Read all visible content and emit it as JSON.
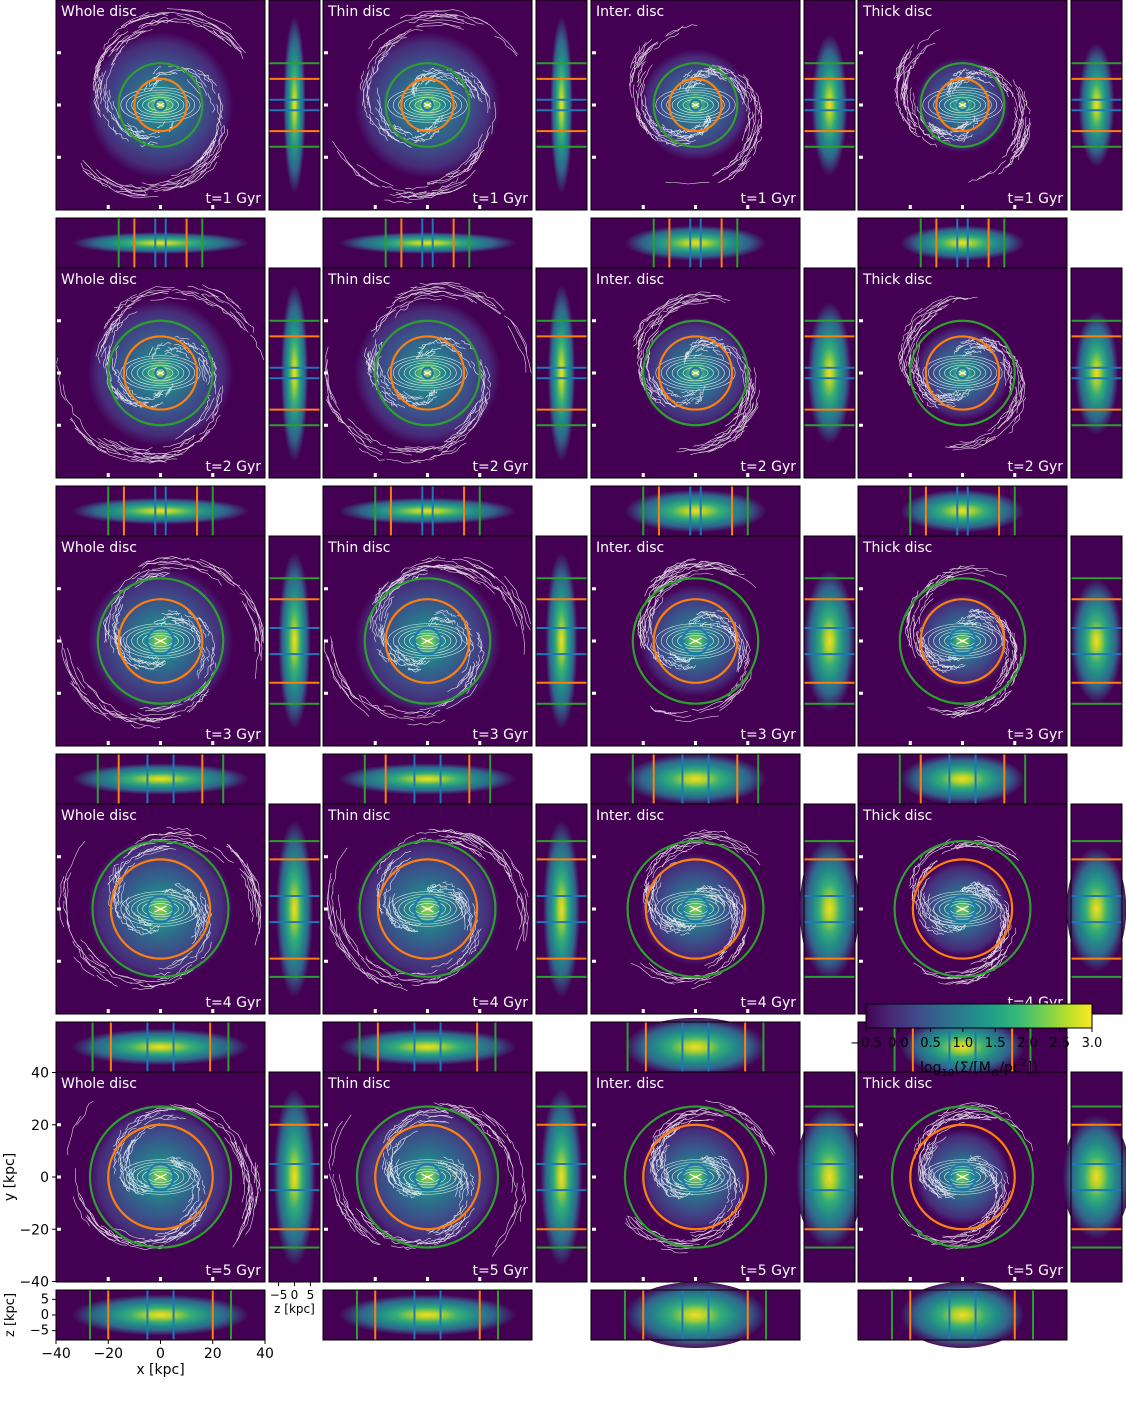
{
  "chart_data": {
    "type": "heatmap",
    "title": "",
    "rows": [
      {
        "time_label": "t=1 Gyr",
        "r_blue": 2,
        "r_orange": 10,
        "r_green": 16
      },
      {
        "time_label": "t=2 Gyr",
        "r_blue": 2,
        "r_orange": 14,
        "r_green": 20
      },
      {
        "time_label": "t=3 Gyr",
        "r_blue": 5,
        "r_orange": 16,
        "r_green": 24
      },
      {
        "time_label": "t=4 Gyr",
        "r_blue": 5,
        "r_orange": 19,
        "r_green": 26
      },
      {
        "time_label": "t=5 Gyr",
        "r_blue": 5,
        "r_orange": 20,
        "r_green": 27
      }
    ],
    "columns": [
      {
        "label": "Whole disc",
        "scale": 1.0,
        "contour_extent": 40
      },
      {
        "label": "Thin disc",
        "scale": 1.0,
        "contour_extent": 40
      },
      {
        "label": "Inter. disc",
        "scale": 0.8,
        "contour_extent": 32
      },
      {
        "label": "Thick disc",
        "scale": 0.7,
        "contour_extent": 30
      }
    ],
    "xlabel": "x [kpc]",
    "ylabel": "y [kpc]",
    "zlabel": "z [kpc]",
    "xlim": [
      -40,
      40
    ],
    "ylim": [
      -40,
      40
    ],
    "zlim": [
      -8,
      8
    ],
    "xticks": [
      -40,
      -20,
      0,
      20,
      40
    ],
    "yticks": [
      40,
      20,
      0,
      -20,
      -40
    ],
    "zticks": [
      5,
      0,
      -5
    ],
    "ztick_labels_xside": [
      "−5",
      "0",
      "5"
    ],
    "colorbar": {
      "label_main": "log",
      "label_sub": "10",
      "label_rest": "(Σ/[M",
      "label_sun": "⊙",
      "label_tail": "/pc",
      "label_sup": "2",
      "label_close": "])",
      "vmin": -0.5,
      "vmax": 3.0,
      "ticks": [
        "−0.5",
        "0.0",
        "0.5",
        "1.0",
        "1.5",
        "2.0",
        "2.5",
        "3.0"
      ],
      "colormap": "viridis"
    },
    "ring_colors": {
      "blue": "#1f77b4",
      "orange": "#ff7f0e",
      "green": "#2ca02c"
    },
    "contour_color": "#ffffff"
  }
}
